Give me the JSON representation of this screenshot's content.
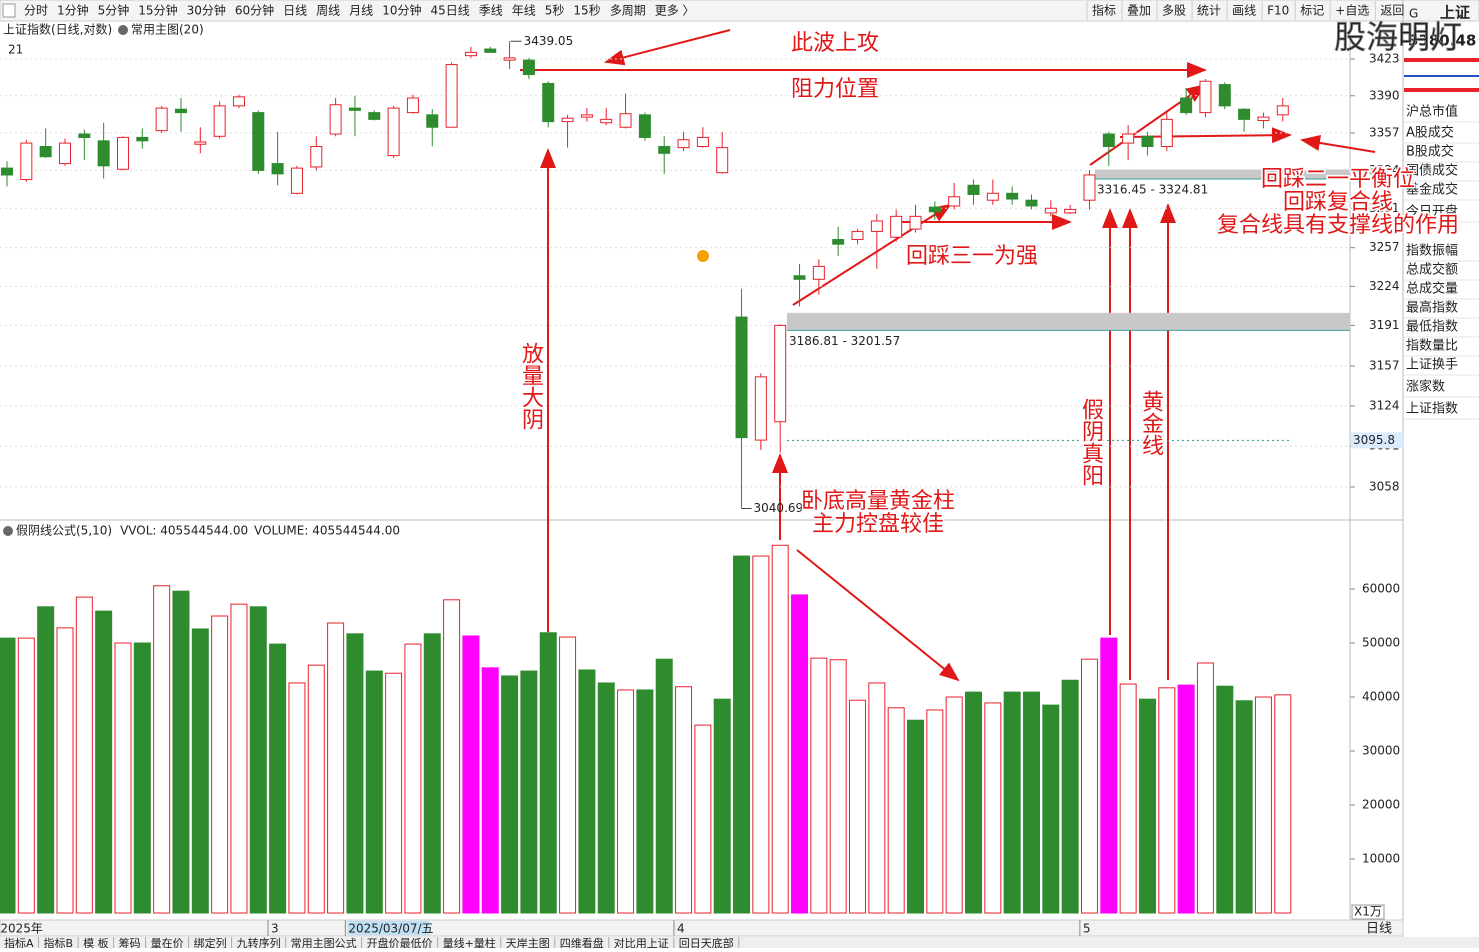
{
  "toolbar": {
    "periods": [
      "分时",
      "1分钟",
      "5分钟",
      "15分钟",
      "30分钟",
      "60分钟",
      "日线",
      "周线",
      "月线",
      "10分钟",
      "45日线",
      "季线",
      "年线",
      "5秒",
      "15秒",
      "多周期",
      "更多 〉"
    ],
    "active": "日线",
    "tools": [
      "指标",
      "叠加",
      "多股",
      "统计",
      "画线",
      "F10",
      "标记",
      "+自选",
      "返回"
    ],
    "active_tool": "画线"
  },
  "header": {
    "count": "21"
  },
  "side_panel": {
    "code": "G",
    "name": "上证",
    "price": "3380.48",
    "watermark": "股海明灯",
    "items": [
      "沪总市值",
      "A股成交",
      "B股成交",
      "国债成交",
      "基金成交",
      "今日开盘",
      "指数振幅",
      "总成交额",
      "总成交量",
      "最高指数",
      "最低指数",
      "指数量比",
      "上证换手",
      "涨家数",
      "上证指数"
    ]
  },
  "footer": {
    "period": "日线",
    "tabs": [
      "指标A",
      "指标B",
      "模 板",
      "筹码",
      "量在价",
      "绑定列",
      "九转序列",
      "常用主图公式",
      "开盘价最低价",
      "量线+量柱",
      "天岸主图",
      "四维看盘",
      "对比用上证",
      "回日天底部"
    ]
  },
  "chart_data": [
    {
      "type": "candlestick",
      "title": "上证指数(日线,对数)",
      "subtitle": "常用主图(20)",
      "categories": [
        "2025年",
        null,
        null,
        null,
        null,
        null,
        null,
        null,
        null,
        null,
        null,
        null,
        null,
        null,
        "3",
        null,
        null,
        null,
        "2025/03/07/五",
        null,
        null,
        null,
        null,
        null,
        null,
        null,
        null,
        null,
        null,
        null,
        null,
        null,
        null,
        null,
        null,
        "4",
        null,
        null,
        null,
        null,
        null,
        null,
        null,
        null,
        null,
        null,
        null,
        null,
        null,
        null,
        null,
        null,
        null,
        null,
        null,
        null,
        "5",
        null,
        null,
        null,
        null,
        null,
        null,
        null,
        null,
        null,
        null
      ],
      "cursor_category": "2025/03/07/五",
      "open": [
        3326,
        3316,
        3345,
        3330,
        3356,
        3350,
        3325,
        3353,
        3359,
        3378,
        3347,
        3354,
        3381,
        3375,
        3330,
        3304,
        3327,
        3356,
        3379,
        3375,
        3337,
        3375,
        3373,
        3362,
        3426,
        3432,
        3422,
        3422,
        3401,
        3367,
        3371,
        3366,
        3362,
        3373,
        3345,
        3344,
        3345,
        3322,
        3198,
        3096,
        3111,
        3233,
        3230,
        3264,
        3264,
        3271,
        3266,
        3273,
        3292,
        3293,
        3311,
        3298,
        3304,
        3298,
        3287,
        3287,
        3298,
        3356,
        3348,
        3354,
        3345,
        3388,
        3375,
        3400,
        3378,
        3368,
        3373
      ],
      "high": [
        3332,
        3351,
        3361,
        3352,
        3360,
        3366,
        3354,
        3361,
        3381,
        3388,
        3362,
        3385,
        3391,
        3377,
        3358,
        3328,
        3354,
        3388,
        3390,
        3377,
        3381,
        3391,
        3378,
        3420,
        3434,
        3434,
        3439.05,
        3424,
        3403,
        3373,
        3379,
        3379,
        3392,
        3375,
        3354,
        3358,
        3362,
        3358,
        3222,
        3151,
        3192,
        3243,
        3247,
        3275,
        3273,
        3286,
        3290,
        3294,
        3297,
        3313,
        3316,
        3316,
        3310,
        3303,
        3298,
        3294,
        3324,
        3358,
        3364,
        3358,
        3375,
        3397,
        3405,
        3402,
        3379,
        3375,
        3388
      ],
      "low": [
        3310,
        3314,
        3335,
        3328,
        3333,
        3317,
        3324,
        3343,
        3357,
        3358,
        3339,
        3352,
        3379,
        3321,
        3311,
        3303,
        3324,
        3354,
        3354,
        3368,
        3335,
        3374,
        3345,
        3362,
        3424,
        3429,
        3414,
        3405,
        3362,
        3344,
        3367,
        3364,
        3361,
        3350,
        3321,
        3341,
        3344,
        3321,
        3040.69,
        3088,
        3086,
        3207,
        3217,
        3250,
        3260,
        3239,
        3262,
        3270,
        3281,
        3290,
        3294,
        3294,
        3294,
        3290,
        3284,
        3286,
        3290,
        3328,
        3333,
        3337,
        3341,
        3373,
        3371,
        3378,
        3358,
        3361,
        3367
      ],
      "close": [
        3320,
        3348,
        3336,
        3348,
        3353,
        3328,
        3353,
        3350,
        3379,
        3375,
        3349,
        3381,
        3389,
        3324,
        3321,
        3326,
        3345,
        3382,
        3377,
        3369,
        3379,
        3388,
        3362,
        3418,
        3429,
        3429,
        3424,
        3409,
        3367,
        3370,
        3373,
        3369,
        3374,
        3353,
        3339,
        3351,
        3353,
        3344,
        3098,
        3148,
        3191,
        3230,
        3241,
        3260,
        3271,
        3280,
        3284,
        3284,
        3288,
        3301,
        3303,
        3304,
        3299,
        3293,
        3291,
        3290,
        3320,
        3345,
        3356,
        3345,
        3369,
        3375,
        3403,
        3381,
        3369,
        3371,
        3381
      ],
      "up_color": "#e8212b",
      "down_color": "#2e8b2e",
      "log_scale": true,
      "grid": true,
      "ylim": [
        3031.5,
        3442
      ],
      "yticks": [
        3423,
        3390,
        3357,
        3324,
        3291,
        3257,
        3224,
        3191,
        3157,
        3124,
        3091,
        3058
      ],
      "price_marker": 3095.8,
      "zones": [
        {
          "low": 3186.81,
          "high": 3201.57,
          "label": "3186.81 - 3201.57"
        },
        {
          "low": 3316.45,
          "high": 3324.81,
          "label": "3316.45 - 3324.81"
        }
      ],
      "annotations": [
        "此波上攻",
        "阻力位置",
        "放量大阴",
        "回踩三一为强",
        "卧底高量黄金柱",
        "主力控盘较佳",
        "假阴真阳",
        "黄金线",
        "回踩二一平衡位",
        "回踩复合线",
        "复合线具有支撑线的作用"
      ]
    },
    {
      "type": "bar",
      "title": "假阴线公式(5,10)",
      "legend": [
        "VVOL: 405544544.00",
        "VOLUME: 405544544.00"
      ],
      "legend_colors": [
        "#333333",
        "#1e6fd0"
      ],
      "unit": "X1万",
      "values": [
        50900,
        50900,
        56700,
        52800,
        58500,
        55900,
        50000,
        50000,
        60600,
        59600,
        52600,
        55000,
        57200,
        56700,
        49800,
        42600,
        45900,
        53700,
        51700,
        44800,
        44400,
        49800,
        51700,
        58000,
        51300,
        45400,
        43900,
        44800,
        51900,
        51100,
        45000,
        42600,
        41300,
        41300,
        47000,
        41900,
        34800,
        39600,
        66100,
        66100,
        68100,
        58900,
        47200,
        46900,
        39400,
        42600,
        38000,
        35700,
        37600,
        40000,
        40900,
        38900,
        40900,
        40900,
        38500,
        43100,
        47000,
        50900,
        42400,
        39600,
        41700,
        42200,
        46300,
        42000,
        39300,
        40000,
        40400
      ],
      "colors": [
        "#2e8b2e",
        "#e8212b",
        "#2e8b2e",
        "#e8212b",
        "#e8212b",
        "#2e8b2e",
        "#e8212b",
        "#2e8b2e",
        "#e8212b",
        "#2e8b2e",
        "#2e8b2e",
        "#e8212b",
        "#e8212b",
        "#2e8b2e",
        "#2e8b2e",
        "#e8212b",
        "#e8212b",
        "#e8212b",
        "#2e8b2e",
        "#2e8b2e",
        "#e8212b",
        "#e8212b",
        "#2e8b2e",
        "#e8212b",
        "#ff00ff",
        "#ff00ff",
        "#2e8b2e",
        "#2e8b2e",
        "#2e8b2e",
        "#e8212b",
        "#2e8b2e",
        "#2e8b2e",
        "#e8212b",
        "#2e8b2e",
        "#2e8b2e",
        "#e8212b",
        "#e8212b",
        "#2e8b2e",
        "#2e8b2e",
        "#e8212b",
        "#e8212b",
        "#ff00ff",
        "#e8212b",
        "#e8212b",
        "#e8212b",
        "#e8212b",
        "#e8212b",
        "#2e8b2e",
        "#e8212b",
        "#e8212b",
        "#2e8b2e",
        "#e8212b",
        "#2e8b2e",
        "#2e8b2e",
        "#2e8b2e",
        "#2e8b2e",
        "#e8212b",
        "#ff00ff",
        "#e8212b",
        "#2e8b2e",
        "#e8212b",
        "#ff00ff",
        "#e8212b",
        "#2e8b2e",
        "#2e8b2e",
        "#e8212b",
        "#e8212b"
      ],
      "hollow_color": "#e8212b",
      "ylim": [
        0,
        70000
      ],
      "yticks": [
        10000,
        20000,
        30000,
        40000,
        50000,
        60000
      ]
    }
  ]
}
